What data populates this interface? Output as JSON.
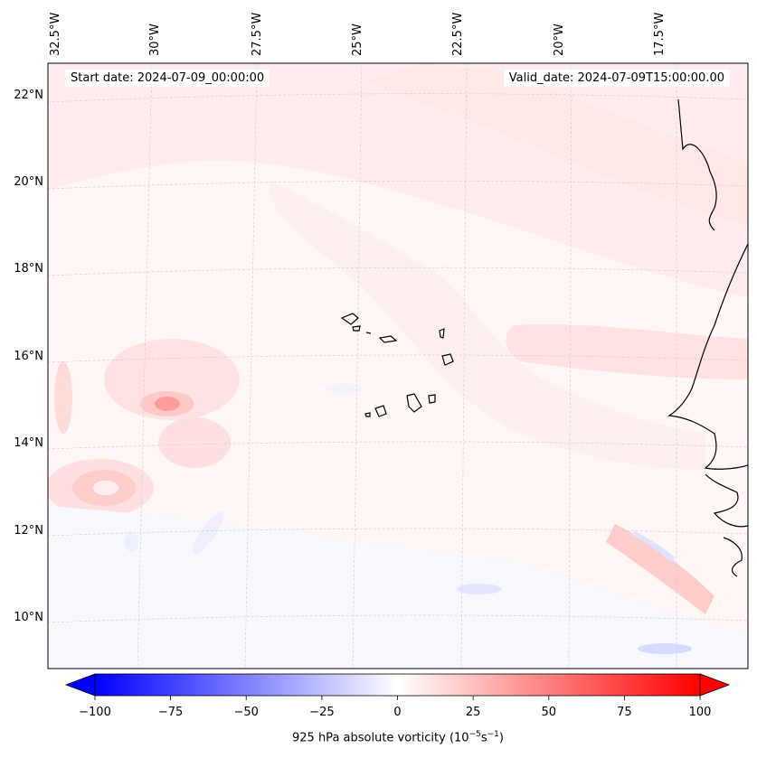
{
  "map": {
    "start_date_label": "Start date: 2024-07-09_00:00:00",
    "valid_date_label": "Valid_date: 2024-07-09T15:00:00.00",
    "longitude_labels": [
      "32.5°W",
      "30°W",
      "27.5°W",
      "25°W",
      "22.5°W",
      "20°W",
      "17.5°W"
    ],
    "latitude_labels": [
      "22°N",
      "20°N",
      "18°N",
      "16°N",
      "14°N",
      "12°N",
      "10°N"
    ],
    "features": [
      "Cape Verde islands",
      "West African coastline"
    ]
  },
  "colorbar": {
    "title_prefix": "925 hPa absolute vorticity (10",
    "title_exp1": "−5",
    "title_mid": "s",
    "title_exp2": "−1",
    "title_suffix": ")",
    "ticks": [
      "−100",
      "−75",
      "−50",
      "−25",
      "0",
      "25",
      "50",
      "75",
      "100"
    ],
    "min": -100,
    "max": 100,
    "colormap": "bwr",
    "colors": {
      "negative": "#0000ff",
      "zero": "#ffffff",
      "positive": "#ff0000"
    }
  }
}
